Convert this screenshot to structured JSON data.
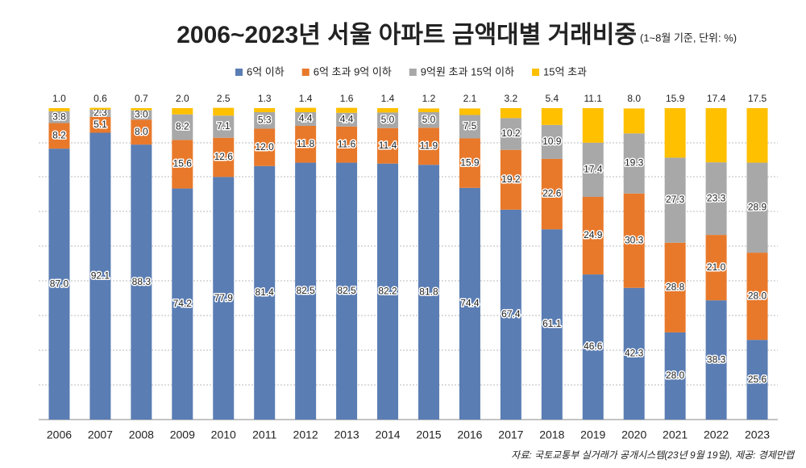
{
  "chart_data": {
    "type": "stacked_bar",
    "title": "2006~2023년 서울 아파트 금액대별 거래비중",
    "subtitle": "(1~8월 기준, 단위: %)",
    "source": "자료: 국토교통부 실거래가 공개시스템(23년 9월 19일), 제공: 경제만랩",
    "categories": [
      "2006",
      "2007",
      "2008",
      "2009",
      "2010",
      "2011",
      "2012",
      "2013",
      "2014",
      "2015",
      "2016",
      "2017",
      "2018",
      "2019",
      "2020",
      "2021",
      "2022",
      "2023"
    ],
    "ylim": [
      0,
      100
    ],
    "series": [
      {
        "name": "6억 이하",
        "color": "#5a7db3",
        "values": [
          87.0,
          92.1,
          88.3,
          74.2,
          77.9,
          81.4,
          82.5,
          82.5,
          82.2,
          81.8,
          74.4,
          67.4,
          61.1,
          46.6,
          42.3,
          28.0,
          38.3,
          25.6
        ],
        "value_labels": [
          "87.0",
          "92.1",
          "88.3",
          "74.2",
          "77.9",
          "81.4",
          "82.5",
          "82.5",
          "82.2",
          "81.8",
          "74.4",
          "67.4",
          "61.1",
          "46.6",
          "42.3",
          "28.0",
          "38.3",
          "25.6"
        ]
      },
      {
        "name": "6억 초과 9억 이하",
        "color": "#e8792b",
        "values": [
          8.2,
          5.1,
          8.0,
          15.6,
          12.6,
          12.0,
          11.8,
          11.6,
          11.4,
          11.9,
          15.9,
          19.2,
          22.6,
          24.9,
          30.3,
          28.8,
          21.0,
          28.0
        ],
        "value_labels": [
          "8.2",
          "5.1",
          "8.0",
          "15.6",
          "12.6",
          "12.0",
          "11.8",
          "11.6",
          "11.4",
          "11.9",
          "15.9",
          "19.2",
          "22.6",
          "24.9",
          "30.3",
          "28.8",
          "21.0",
          "28.0"
        ]
      },
      {
        "name": "9억원 초과 15억 이하",
        "color": "#a8a8a8",
        "values": [
          3.8,
          2.3,
          3.0,
          8.2,
          7.1,
          5.3,
          4.4,
          4.4,
          5.0,
          5.0,
          7.5,
          10.2,
          10.9,
          17.4,
          19.3,
          27.3,
          23.3,
          28.9
        ],
        "value_labels": [
          "3.8",
          "2.3",
          "3.0",
          "8.2",
          "7.1",
          "5.3",
          "4.4",
          "4.4",
          "5.0",
          "5.0",
          "7.5",
          "10.2",
          "10.9",
          "17.4",
          "19.3",
          "27.3",
          "23.3",
          "28.9"
        ]
      },
      {
        "name": "15억 초과",
        "color": "#ffc000",
        "values": [
          1.0,
          0.6,
          0.7,
          2.0,
          2.5,
          1.3,
          1.4,
          1.6,
          1.4,
          1.2,
          2.1,
          3.2,
          5.4,
          11.1,
          8.0,
          15.9,
          17.4,
          17.5
        ],
        "value_labels": [
          "1.0",
          "0.6",
          "0.7",
          "2.0",
          "2.5",
          "1.3",
          "1.4",
          "1.6",
          "1.4",
          "1.2",
          "2.1",
          "3.2",
          "5.4",
          "11.1",
          "8.0",
          "15.9",
          "17.4",
          "17.5"
        ]
      }
    ]
  }
}
